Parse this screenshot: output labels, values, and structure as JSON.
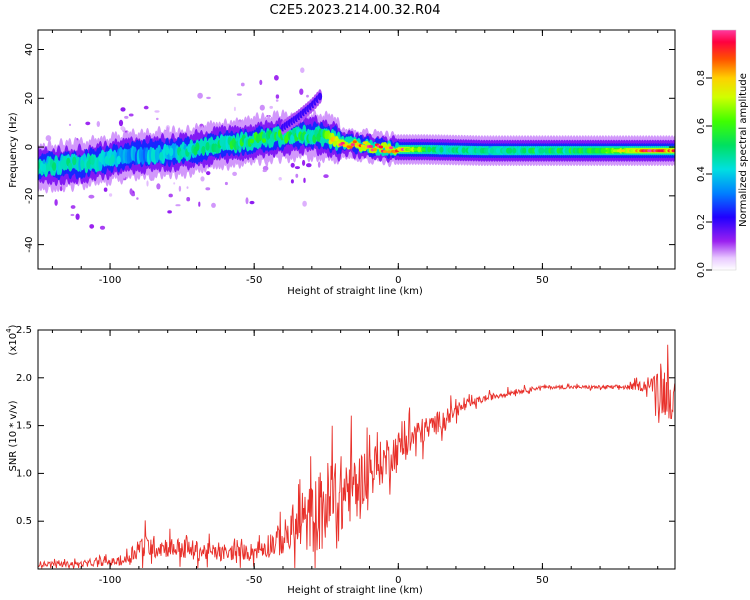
{
  "title": "C2E5.2023.214.00.32.R04",
  "colors": {
    "snr_line": "#e8302a",
    "axis": "#000000"
  },
  "chart_data": [
    {
      "type": "heatmap",
      "title": "C2E5.2023.214.00.32.R04",
      "xlabel": "Height of straight line (km)",
      "ylabel": "Frequency (Hz)",
      "xlim": [
        -125,
        96
      ],
      "ylim": [
        -50,
        48
      ],
      "xticks": [
        -100,
        -50,
        0,
        50
      ],
      "yticks": [
        -40,
        -20,
        0,
        20,
        40
      ],
      "colorbar": {
        "label": "Normalized spectral amplitude",
        "range": [
          0.0,
          1.0
        ],
        "ticks": [
          0.0,
          0.2,
          0.4,
          0.6,
          0.8
        ],
        "tick_labels": [
          "0.0",
          "0.2",
          "0.4",
          "0.6",
          "0.8"
        ]
      },
      "ridge": {
        "description_free": true,
        "x": [
          -125,
          -110,
          -90,
          -75,
          -60,
          -45,
          -30,
          -25,
          -20,
          -10,
          0,
          10,
          30,
          50,
          70,
          90,
          96
        ],
        "center_hz": [
          -8,
          -7,
          -3,
          -2,
          1,
          4,
          5,
          4,
          2,
          0,
          -1,
          -1,
          -1.5,
          -1.5,
          -1.5,
          -1.5,
          -1.5
        ],
        "peak_amplitude": [
          0.45,
          0.45,
          0.35,
          0.45,
          0.5,
          0.55,
          0.5,
          0.6,
          0.9,
          0.95,
          0.95,
          0.5,
          0.45,
          0.5,
          0.55,
          0.95,
          0.9
        ]
      },
      "branch": {
        "x": [
          -40,
          -35,
          -30,
          -27
        ],
        "center_hz": [
          8,
          12,
          17,
          21
        ]
      }
    },
    {
      "type": "line",
      "xlabel": "Height of straight line (km)",
      "ylabel": "SNR (10 * v/v)",
      "scale_label": "(x10",
      "scale_exponent": "4",
      "xlim": [
        -125,
        96
      ],
      "ylim": [
        0,
        2.5
      ],
      "xticks": [
        -100,
        -50,
        0,
        50
      ],
      "yticks": [
        0.5,
        1.0,
        1.5,
        2.0,
        2.5
      ],
      "ytick_labels": [
        "0.5",
        "1.0",
        "1.5",
        "2.0",
        "2.5"
      ],
      "series": [
        {
          "x": [
            -125,
            -110,
            -95,
            -90,
            -80,
            -70,
            -60,
            -50,
            -40,
            -30,
            -25,
            -20,
            -15,
            -10,
            -5,
            0,
            5,
            10,
            15,
            20,
            25,
            30,
            40,
            50,
            60,
            70,
            80,
            88,
            90,
            92,
            94,
            96
          ],
          "baseline": [
            0.05,
            0.05,
            0.08,
            0.22,
            0.22,
            0.18,
            0.15,
            0.18,
            0.3,
            0.5,
            0.6,
            0.7,
            0.85,
            1.0,
            1.1,
            1.25,
            1.35,
            1.45,
            1.55,
            1.65,
            1.72,
            1.78,
            1.85,
            1.9,
            1.9,
            1.9,
            1.9,
            1.92,
            1.9,
            1.85,
            1.8,
            1.75
          ],
          "noise": [
            0.03,
            0.03,
            0.05,
            0.15,
            0.12,
            0.12,
            0.08,
            0.1,
            0.2,
            0.4,
            0.55,
            0.5,
            0.35,
            0.3,
            0.25,
            0.2,
            0.2,
            0.15,
            0.12,
            0.08,
            0.05,
            0.04,
            0.03,
            0.02,
            0.02,
            0.02,
            0.03,
            0.08,
            0.25,
            0.3,
            0.3,
            0.2
          ]
        }
      ]
    }
  ]
}
